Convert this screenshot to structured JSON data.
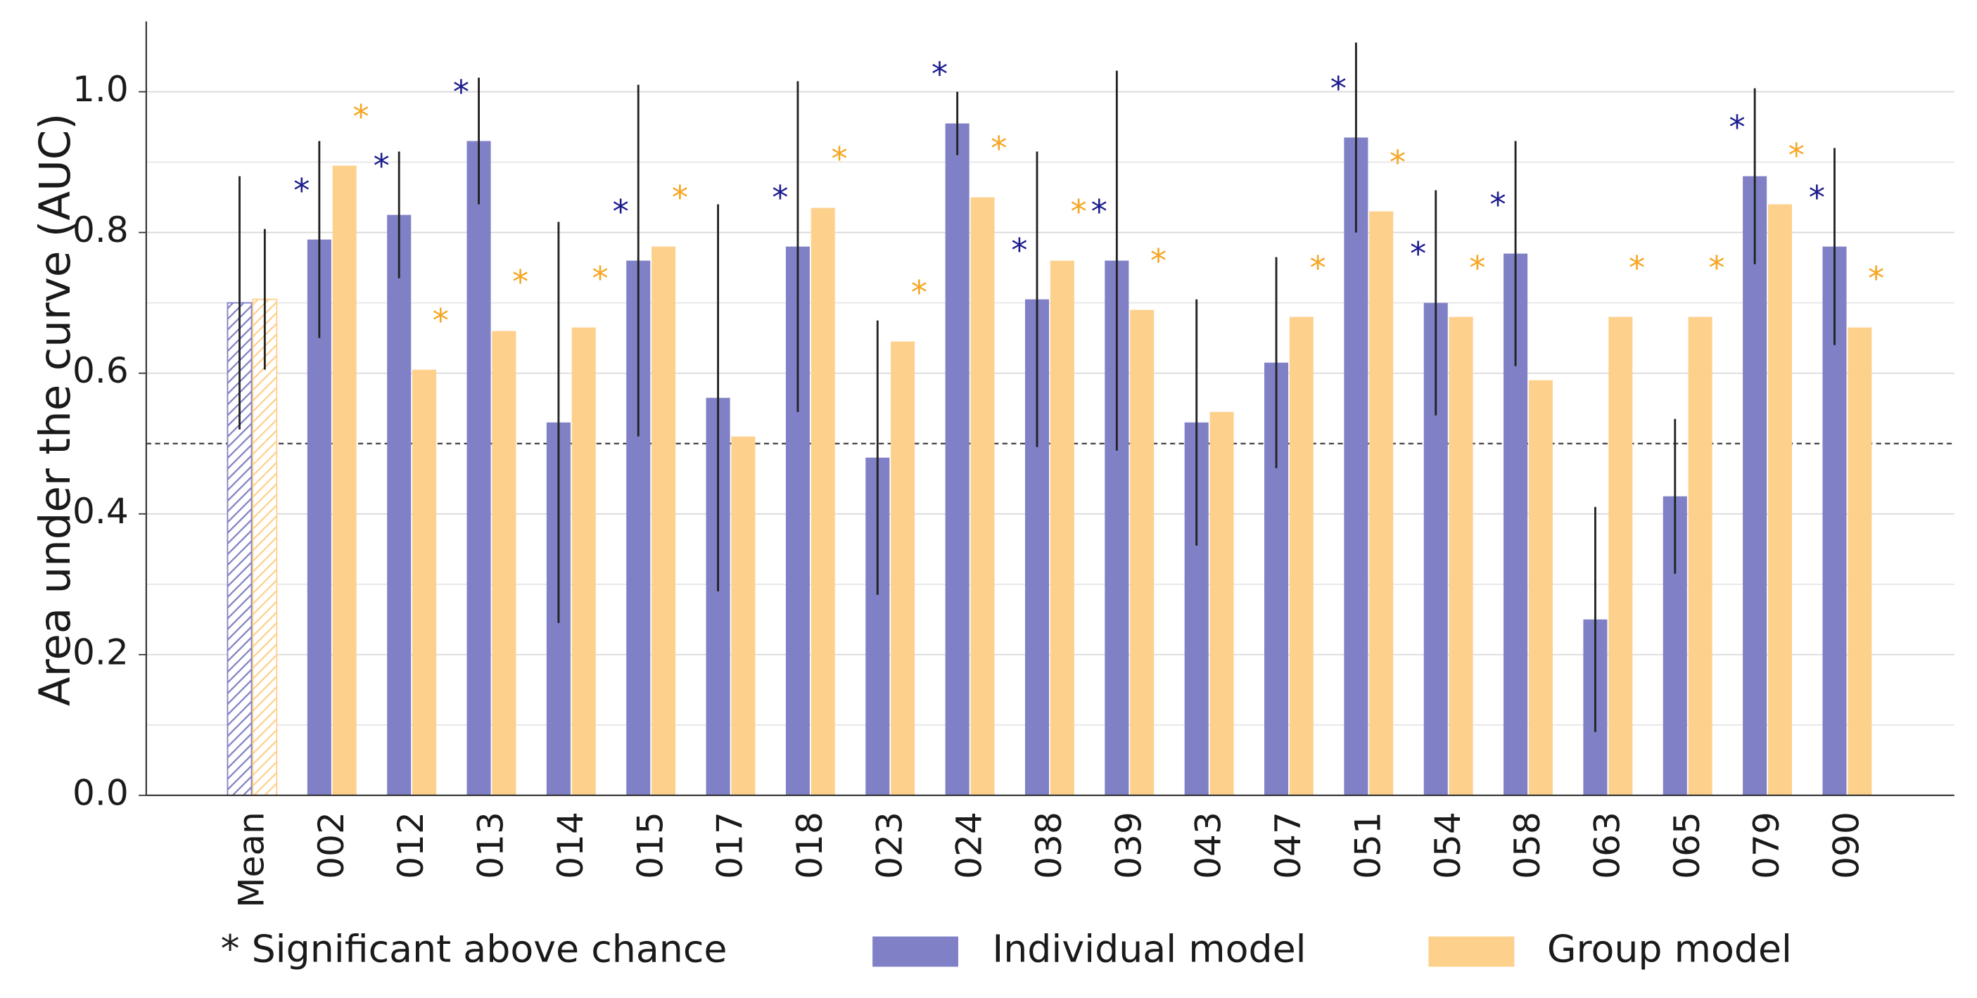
{
  "chart_data": {
    "type": "bar",
    "y_label": "Area under the curve (AUC)",
    "categories": [
      "Mean",
      "002",
      "012",
      "013",
      "014",
      "015",
      "017",
      "018",
      "023",
      "024",
      "038",
      "039",
      "043",
      "047",
      "051",
      "054",
      "058",
      "063",
      "065",
      "079",
      "090"
    ],
    "hatched": [
      "Mean"
    ],
    "series": [
      {
        "name": "Individual model",
        "color": "#8080c6",
        "star_color": "#1c1c8e",
        "values": [
          0.7,
          0.79,
          0.825,
          0.93,
          0.53,
          0.76,
          0.565,
          0.78,
          0.48,
          0.955,
          0.705,
          0.76,
          0.53,
          0.615,
          0.935,
          0.7,
          0.77,
          0.25,
          0.425,
          0.88,
          0.78
        ],
        "errors": [
          0.18,
          0.14,
          0.09,
          0.09,
          0.285,
          0.25,
          0.275,
          0.235,
          0.195,
          0.045,
          0.21,
          0.27,
          0.175,
          0.15,
          0.135,
          0.16,
          0.16,
          0.16,
          0.11,
          0.125,
          0.14
        ],
        "significant": [
          false,
          true,
          true,
          true,
          false,
          true,
          false,
          true,
          false,
          true,
          true,
          true,
          false,
          false,
          true,
          true,
          true,
          false,
          false,
          true,
          true
        ]
      },
      {
        "name": "Group model",
        "color": "#fdd18c",
        "star_color": "#f5a623",
        "values": [
          0.705,
          0.895,
          0.605,
          0.66,
          0.665,
          0.78,
          0.51,
          0.835,
          0.645,
          0.85,
          0.76,
          0.69,
          0.545,
          0.68,
          0.83,
          0.68,
          0.59,
          0.68,
          0.68,
          0.84,
          0.665
        ],
        "errors": [
          0.1,
          null,
          null,
          null,
          null,
          null,
          null,
          null,
          null,
          null,
          null,
          null,
          null,
          null,
          null,
          null,
          null,
          null,
          null,
          null,
          null
        ],
        "significant": [
          false,
          true,
          true,
          true,
          true,
          true,
          false,
          true,
          true,
          true,
          true,
          true,
          false,
          true,
          true,
          true,
          false,
          true,
          true,
          true,
          true
        ]
      }
    ],
    "significance_marker": "*",
    "legend_note": "* Significant above chance",
    "ylim": [
      0,
      1.1
    ],
    "yticks": [
      {
        "value": 0,
        "label": "0.0"
      },
      0.2,
      0.4,
      0.6,
      0.8,
      {
        "value": 1,
        "label": "1.0"
      }
    ],
    "minor_grid": [
      0.1,
      0.3,
      0.7,
      0.9
    ],
    "reference_line": 0.5,
    "grid": true
  }
}
